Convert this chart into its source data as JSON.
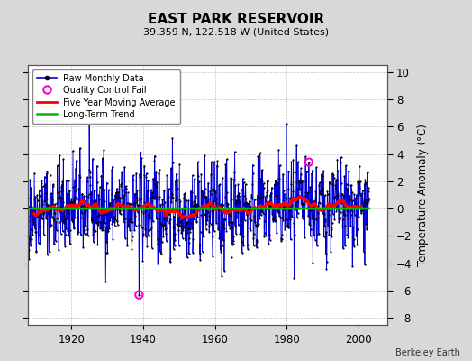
{
  "title": "EAST PARK RESERVOIR",
  "subtitle": "39.359 N, 122.518 W (United States)",
  "ylabel": "Temperature Anomaly (°C)",
  "credit": "Berkeley Earth",
  "xlim": [
    1908,
    2008
  ],
  "ylim": [
    -8.5,
    10.5
  ],
  "yticks": [
    -8,
    -6,
    -4,
    -2,
    0,
    2,
    4,
    6,
    8,
    10
  ],
  "xticks": [
    1920,
    1940,
    1960,
    1980,
    2000
  ],
  "bg_color": "#d8d8d8",
  "plot_bg_color": "#ffffff",
  "raw_line_color": "#0000dd",
  "raw_dot_color": "#000000",
  "raw_shade_color": "#8888ff",
  "qc_fail_color": "#ff00cc",
  "moving_avg_color": "#ff0000",
  "long_trend_color": "#00bb00",
  "seed": 42,
  "n_points": 1116,
  "start_year": 1907.0,
  "end_year": 2003.0,
  "qc_fail_indices": [
    370,
    920
  ],
  "qc_fail_values": [
    -6.3,
    3.4
  ]
}
